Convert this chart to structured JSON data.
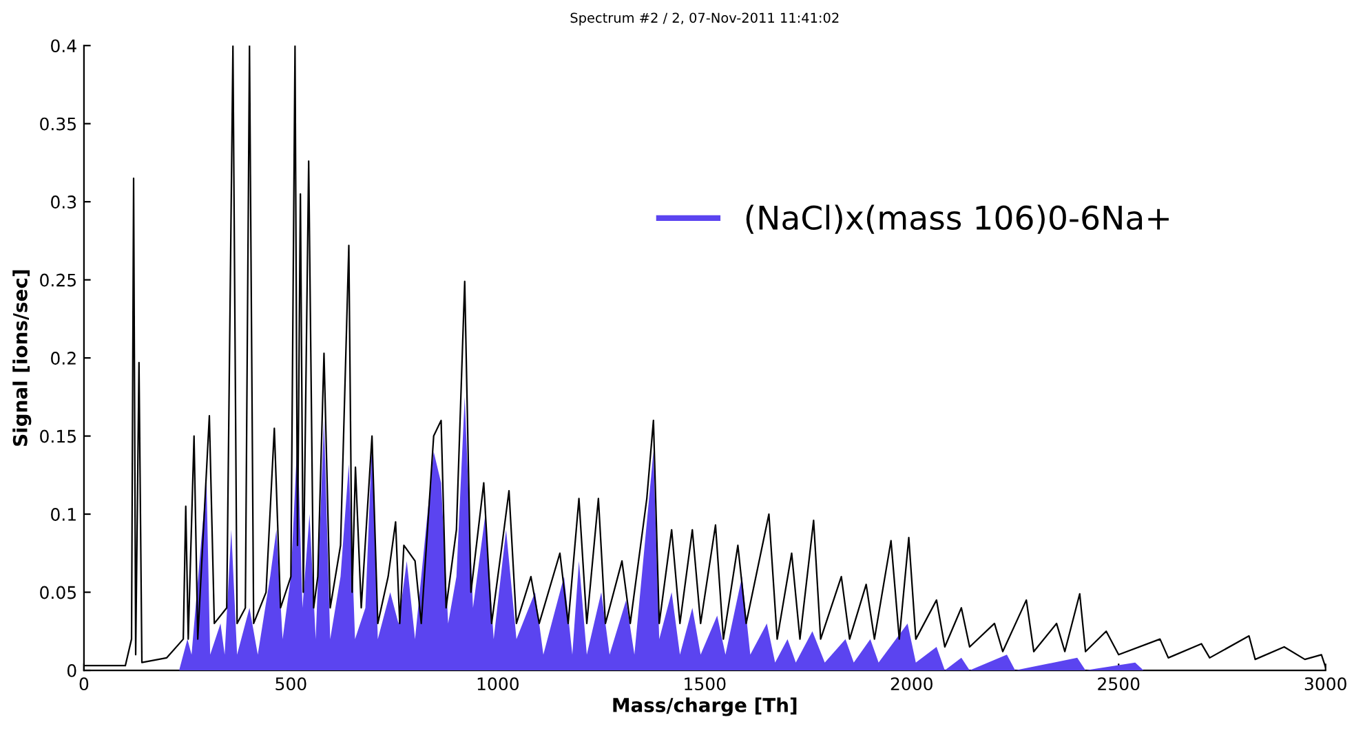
{
  "chart_data": {
    "type": "line",
    "title": "Spectrum #2 / 2, 07-Nov-2011 11:41:02",
    "xlabel": "Mass/charge [Th]",
    "ylabel": "Signal [ions/sec]",
    "xlim": [
      0,
      3000
    ],
    "ylim": [
      0,
      0.4
    ],
    "xticks": [
      0,
      500,
      1000,
      1500,
      2000,
      2500,
      3000
    ],
    "yticks": [
      0,
      0.05,
      0.1,
      0.15,
      0.2,
      0.25,
      0.3,
      0.35,
      0.4
    ],
    "grid": false,
    "legend": "right",
    "marker": "none",
    "line_style": "solid",
    "series": [
      {
        "color": "#000000",
        "x": [
          0,
          100,
          115,
          120,
          125,
          133,
          140,
          200,
          240,
          246,
          252,
          266,
          275,
          303,
          315,
          345,
          360,
          370,
          390,
          400,
          410,
          440,
          460,
          475,
          500,
          510,
          516,
          523,
          530,
          543,
          555,
          565,
          580,
          595,
          620,
          640,
          648,
          656,
          670,
          696,
          710,
          735,
          753,
          763,
          773,
          800,
          815,
          845,
          863,
          875,
          900,
          920,
          935,
          966,
          985,
          1010,
          1027,
          1045,
          1080,
          1100,
          1150,
          1170,
          1196,
          1215,
          1243,
          1260,
          1300,
          1320,
          1360,
          1376,
          1390,
          1420,
          1440,
          1470,
          1490,
          1526,
          1545,
          1580,
          1600,
          1655,
          1675,
          1710,
          1730,
          1763,
          1780,
          1830,
          1850,
          1890,
          1910,
          1950,
          1970,
          1993,
          2010,
          2060,
          2080,
          2120,
          2140,
          2200,
          2220,
          2277,
          2295,
          2350,
          2370,
          2406,
          2420,
          2470,
          2500,
          2600,
          2620,
          2700,
          2720,
          2815,
          2830,
          2900,
          2950,
          2990,
          3000
        ],
        "values": [
          0.003,
          0.003,
          0.02,
          0.315,
          0.01,
          0.197,
          0.005,
          0.008,
          0.02,
          0.105,
          0.02,
          0.15,
          0.02,
          0.163,
          0.03,
          0.04,
          0.4,
          0.03,
          0.04,
          0.4,
          0.03,
          0.05,
          0.155,
          0.04,
          0.06,
          0.4,
          0.08,
          0.305,
          0.05,
          0.326,
          0.04,
          0.06,
          0.203,
          0.04,
          0.08,
          0.272,
          0.05,
          0.13,
          0.04,
          0.15,
          0.03,
          0.06,
          0.095,
          0.03,
          0.08,
          0.07,
          0.03,
          0.15,
          0.16,
          0.04,
          0.09,
          0.249,
          0.05,
          0.12,
          0.03,
          0.08,
          0.115,
          0.03,
          0.06,
          0.03,
          0.075,
          0.03,
          0.11,
          0.03,
          0.11,
          0.03,
          0.07,
          0.03,
          0.11,
          0.16,
          0.03,
          0.09,
          0.03,
          0.09,
          0.03,
          0.093,
          0.02,
          0.08,
          0.03,
          0.1,
          0.02,
          0.075,
          0.02,
          0.096,
          0.02,
          0.06,
          0.02,
          0.055,
          0.02,
          0.083,
          0.02,
          0.085,
          0.02,
          0.045,
          0.015,
          0.04,
          0.015,
          0.03,
          0.012,
          0.045,
          0.012,
          0.03,
          0.012,
          0.049,
          0.012,
          0.025,
          0.01,
          0.02,
          0.008,
          0.017,
          0.008,
          0.022,
          0.007,
          0.015,
          0.007,
          0.01,
          0.002
        ]
      },
      {
        "type": "area",
        "name": "(NaCl)x(mass 106)0-6Na+",
        "color": "#5b44f0",
        "x": [
          0,
          230,
          250,
          260,
          296,
          305,
          330,
          340,
          356,
          370,
          400,
          420,
          450,
          465,
          480,
          500,
          516,
          528,
          545,
          560,
          580,
          595,
          620,
          640,
          655,
          680,
          696,
          710,
          740,
          760,
          780,
          800,
          845,
          863,
          880,
          900,
          920,
          940,
          970,
          990,
          1020,
          1045,
          1090,
          1110,
          1160,
          1180,
          1196,
          1215,
          1250,
          1270,
          1310,
          1330,
          1376,
          1390,
          1420,
          1440,
          1470,
          1490,
          1530,
          1550,
          1590,
          1610,
          1650,
          1670,
          1700,
          1720,
          1760,
          1790,
          1840,
          1860,
          1900,
          1920,
          1990,
          2010,
          2060,
          2080,
          2120,
          2140,
          2230,
          2250,
          2400,
          2420,
          2540,
          2560,
          3000
        ],
        "values": [
          0,
          0,
          0.02,
          0.01,
          0.122,
          0.01,
          0.03,
          0.01,
          0.09,
          0.01,
          0.04,
          0.01,
          0.06,
          0.09,
          0.02,
          0.06,
          0.15,
          0.04,
          0.1,
          0.02,
          0.16,
          0.02,
          0.06,
          0.132,
          0.02,
          0.04,
          0.147,
          0.02,
          0.05,
          0.03,
          0.07,
          0.02,
          0.14,
          0.12,
          0.03,
          0.06,
          0.175,
          0.04,
          0.1,
          0.02,
          0.09,
          0.02,
          0.05,
          0.01,
          0.06,
          0.01,
          0.07,
          0.01,
          0.05,
          0.01,
          0.045,
          0.01,
          0.14,
          0.02,
          0.05,
          0.01,
          0.04,
          0.01,
          0.035,
          0.01,
          0.06,
          0.01,
          0.03,
          0.005,
          0.02,
          0.005,
          0.025,
          0.005,
          0.02,
          0.005,
          0.02,
          0.005,
          0.03,
          0.005,
          0.015,
          0,
          0.008,
          0,
          0.01,
          0,
          0.008,
          0,
          0.005,
          0,
          0
        ]
      }
    ]
  }
}
